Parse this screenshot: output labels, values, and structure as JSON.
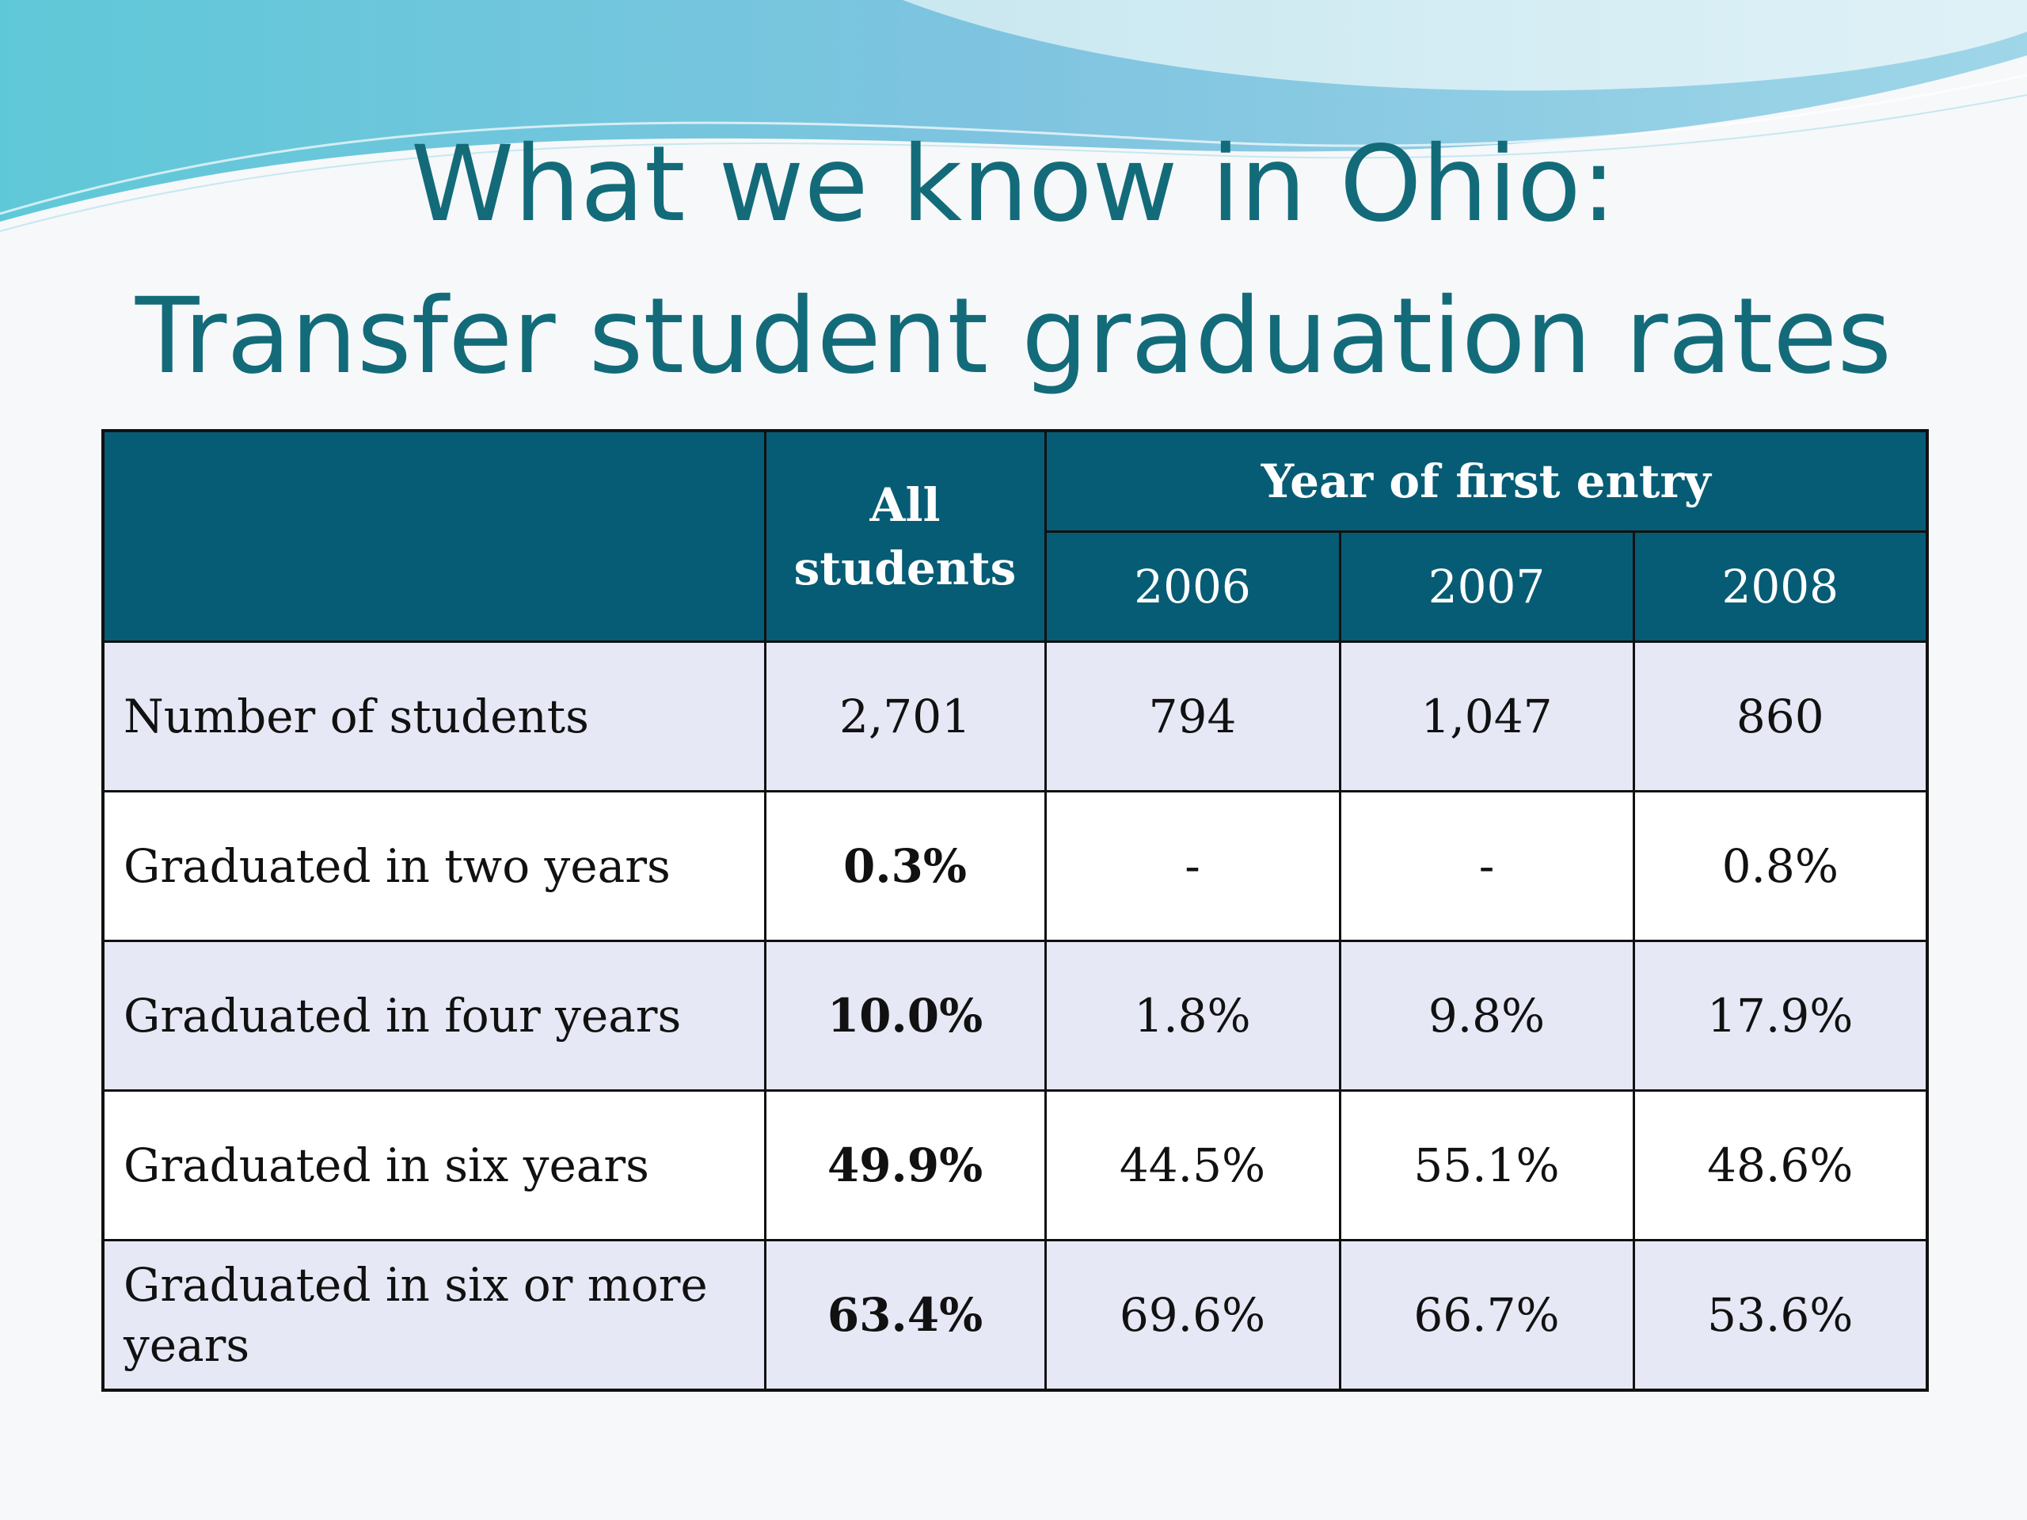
{
  "title": {
    "line1": "What we know in Ohio:",
    "line2": "Transfer student graduation rates"
  },
  "colors": {
    "title": "#136b7a",
    "header_bg": "#075c75",
    "row_shaded": "#e6e8f5",
    "row_plain": "#ffffff"
  },
  "table": {
    "header": {
      "corner": "",
      "all_students": "All students",
      "group": "Year of first entry",
      "years": [
        "2006",
        "2007",
        "2008"
      ]
    },
    "rows": [
      {
        "label": "Number of students",
        "all": "2,701",
        "y2006": "794",
        "y2007": "1,047",
        "y2008": "860"
      },
      {
        "label": "Graduated in two years",
        "all": "0.3%",
        "y2006": "-",
        "y2007": "-",
        "y2008": "0.8%"
      },
      {
        "label": "Graduated in four years",
        "all": "10.0%",
        "y2006": "1.8%",
        "y2007": "9.8%",
        "y2008": "17.9%"
      },
      {
        "label": "Graduated in six years",
        "all": "49.9%",
        "y2006": "44.5%",
        "y2007": "55.1%",
        "y2008": "48.6%"
      },
      {
        "label": "Graduated in six or more years",
        "all": "63.4%",
        "y2006": "69.6%",
        "y2007": "66.7%",
        "y2008": "53.6%"
      }
    ]
  }
}
